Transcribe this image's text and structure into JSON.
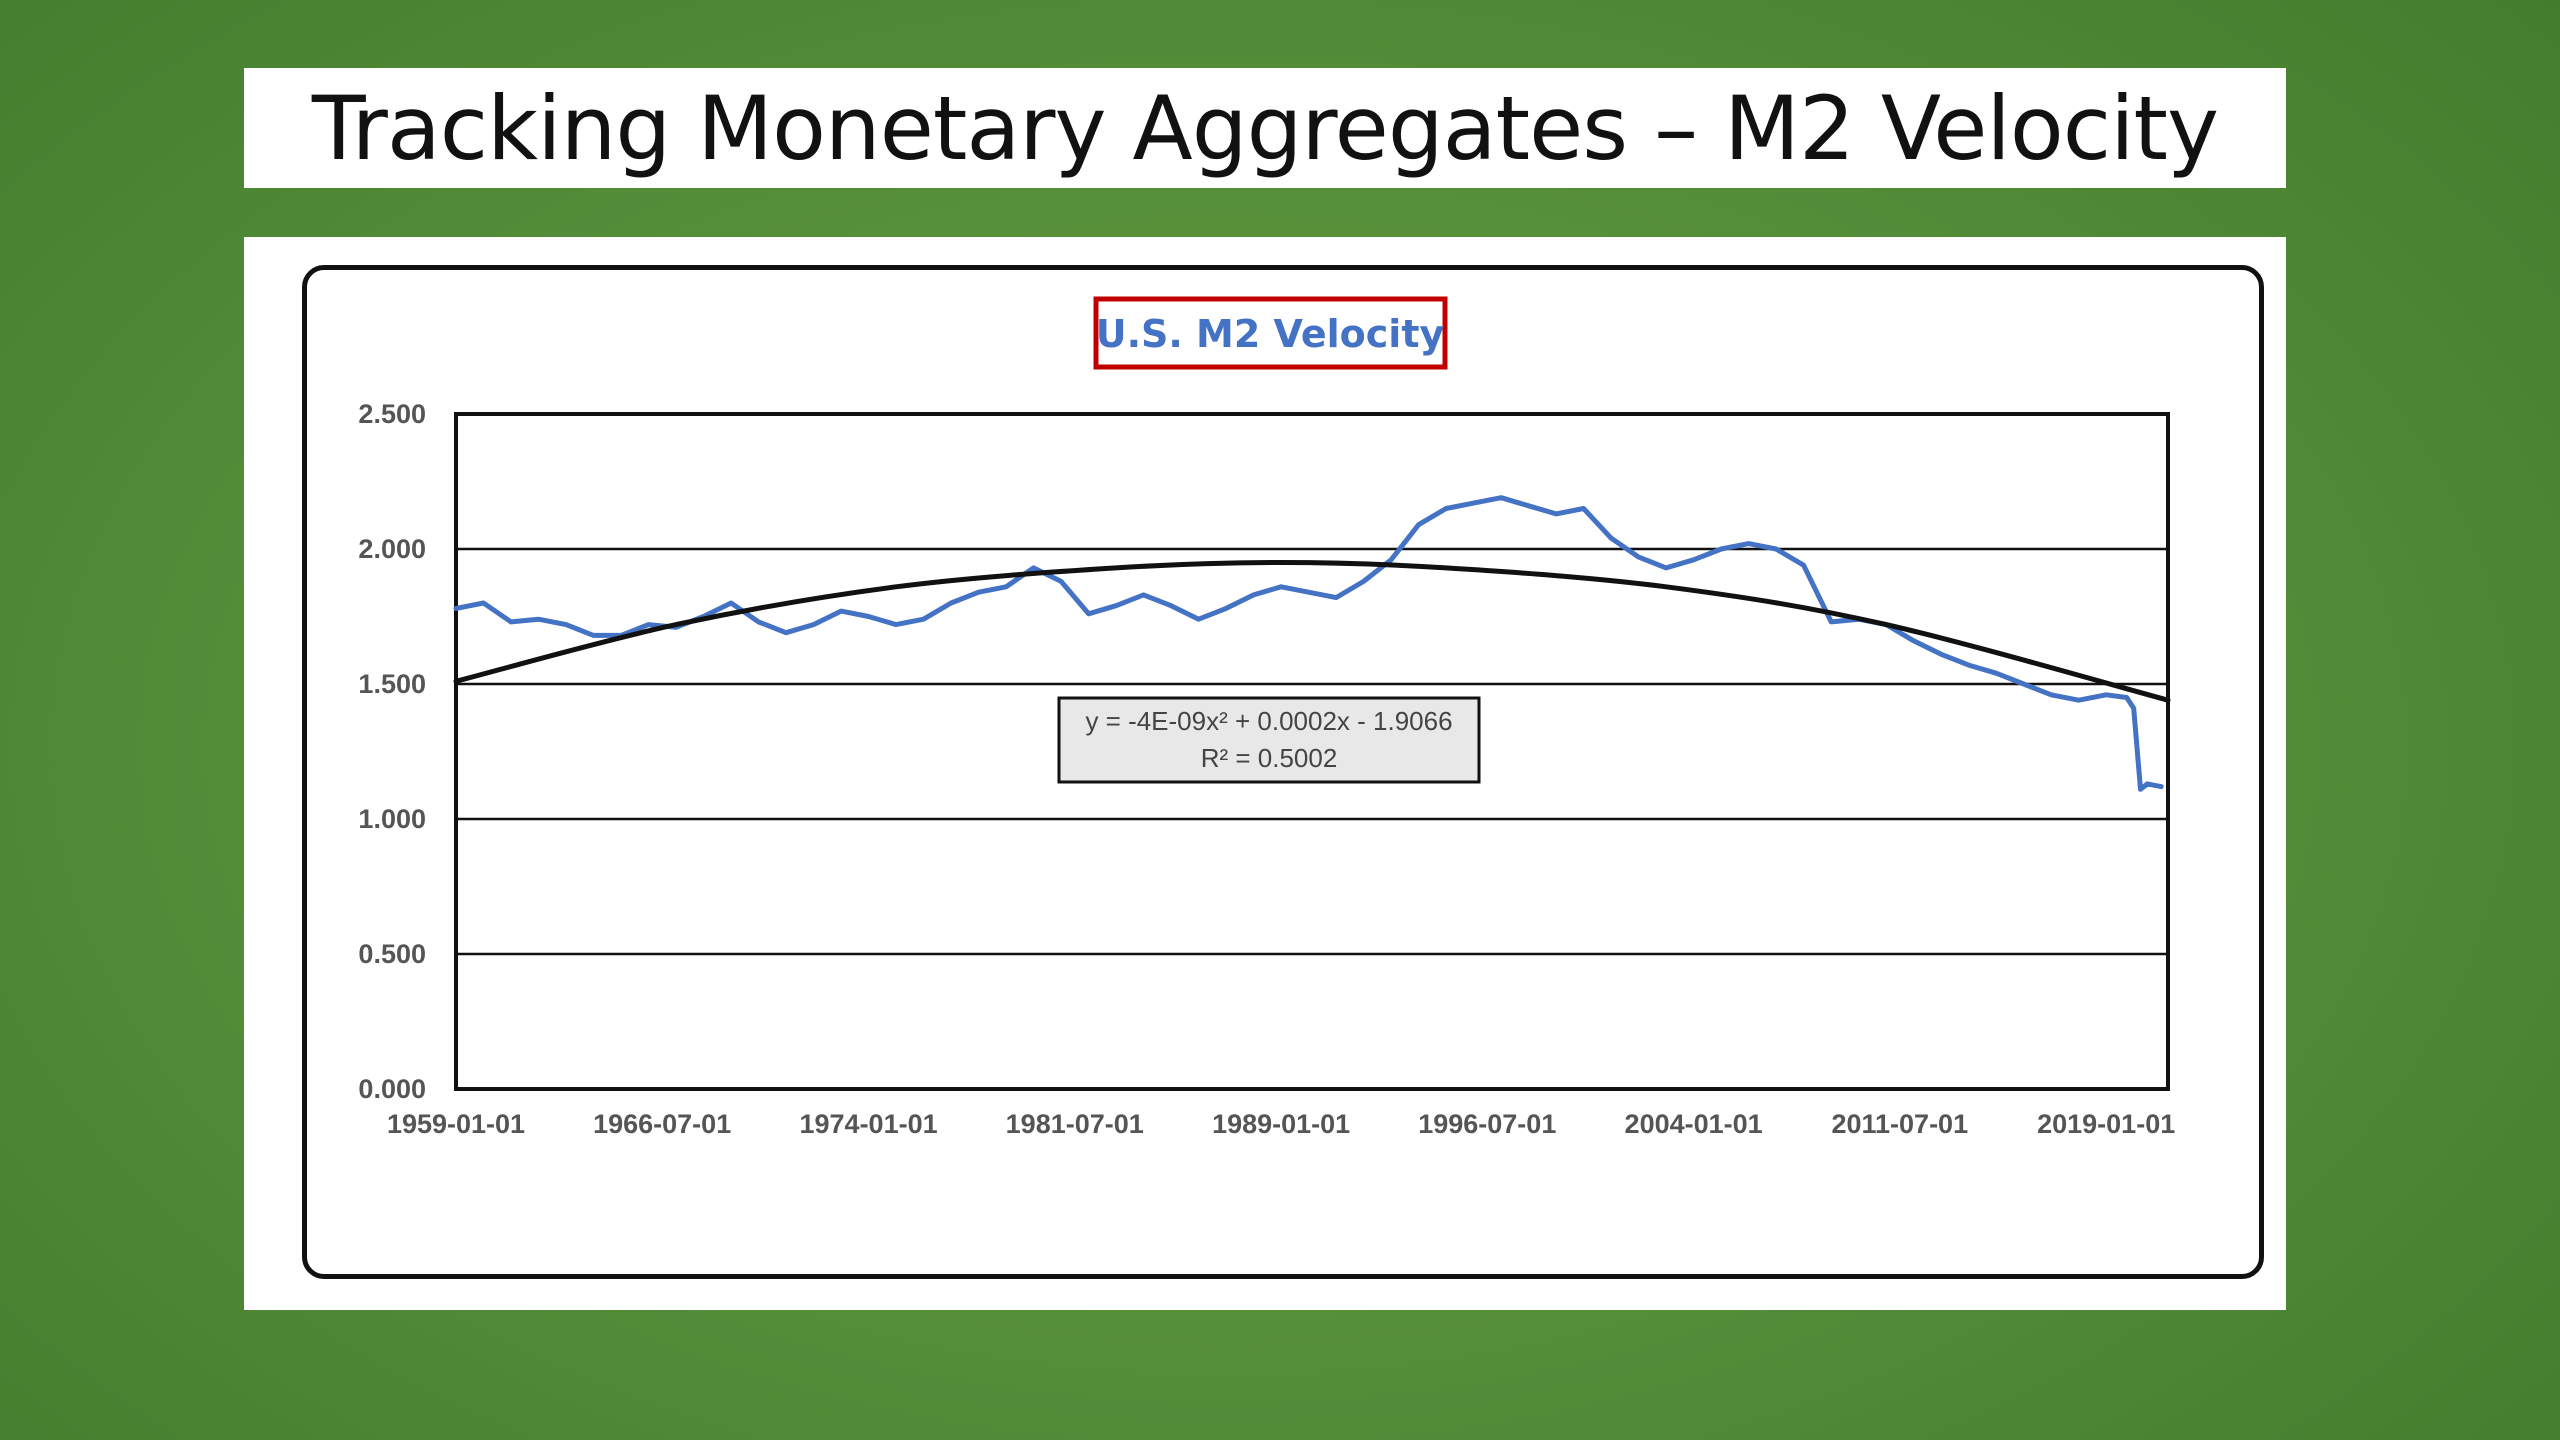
{
  "slide": {
    "title": "Tracking Monetary Aggregates – M2 Velocity"
  },
  "colors": {
    "background": "#5a9139",
    "series": "#4472c4",
    "trendline": "#111111",
    "title_border": "#c00000"
  },
  "chart_data": {
    "type": "line",
    "title": "U.S. M2 Velocity",
    "xlabel": "",
    "ylabel": "",
    "x_tick_labels": [
      "1959-01-01",
      "1966-07-01",
      "1974-01-01",
      "1981-07-01",
      "1989-01-01",
      "1996-07-01",
      "2004-01-01",
      "2011-07-01",
      "2019-01-01"
    ],
    "xlim": [
      "1959-01-01",
      "2021-04-01"
    ],
    "y_tick_labels": [
      "0.000",
      "0.500",
      "1.000",
      "1.500",
      "2.000",
      "2.500"
    ],
    "ylim": [
      0,
      2.5
    ],
    "grid": "horizontal",
    "legend": "none",
    "series": [
      {
        "x": [
          "1959-01-01",
          "1960-01-01",
          "1961-01-01",
          "1962-01-01",
          "1963-01-01",
          "1964-01-01",
          "1965-01-01",
          "1966-01-01",
          "1967-01-01",
          "1968-01-01",
          "1969-01-01",
          "1970-01-01",
          "1971-01-01",
          "1972-01-01",
          "1973-01-01",
          "1974-01-01",
          "1975-01-01",
          "1976-01-01",
          "1977-01-01",
          "1978-01-01",
          "1979-01-01",
          "1980-01-01",
          "1981-01-01",
          "1982-01-01",
          "1983-01-01",
          "1984-01-01",
          "1985-01-01",
          "1986-01-01",
          "1987-01-01",
          "1988-01-01",
          "1989-01-01",
          "1990-01-01",
          "1991-01-01",
          "1992-01-01",
          "1993-01-01",
          "1994-01-01",
          "1995-01-01",
          "1996-01-01",
          "1997-01-01",
          "1998-01-01",
          "1999-01-01",
          "2000-01-01",
          "2001-01-01",
          "2002-01-01",
          "2003-01-01",
          "2004-01-01",
          "2005-01-01",
          "2006-01-01",
          "2007-01-01",
          "2008-01-01",
          "2009-01-01",
          "2010-01-01",
          "2011-01-01",
          "2012-01-01",
          "2013-01-01",
          "2014-01-01",
          "2015-01-01",
          "2016-01-01",
          "2017-01-01",
          "2018-01-01",
          "2019-01-01",
          "2019-10-01",
          "2020-01-01",
          "2020-04-01",
          "2020-07-01",
          "2021-01-01"
        ],
        "values": [
          1.78,
          1.8,
          1.73,
          1.74,
          1.72,
          1.68,
          1.68,
          1.72,
          1.71,
          1.75,
          1.8,
          1.73,
          1.69,
          1.72,
          1.77,
          1.75,
          1.72,
          1.74,
          1.8,
          1.84,
          1.86,
          1.93,
          1.88,
          1.76,
          1.79,
          1.83,
          1.79,
          1.74,
          1.78,
          1.83,
          1.86,
          1.84,
          1.82,
          1.88,
          1.96,
          2.09,
          2.15,
          2.17,
          2.19,
          2.16,
          2.13,
          2.15,
          2.04,
          1.97,
          1.93,
          1.96,
          2.0,
          2.02,
          2.0,
          1.94,
          1.73,
          1.74,
          1.72,
          1.66,
          1.61,
          1.57,
          1.54,
          1.5,
          1.46,
          1.44,
          1.46,
          1.45,
          1.41,
          1.11,
          1.13,
          1.12
        ]
      }
    ],
    "trendline": {
      "type": "polynomial",
      "order": 2,
      "equation": "y = -4E-09x² + 0.0002x - 1.9066",
      "r_squared": "R² = 0.5002",
      "x": [
        "1959-01-01",
        "1967-01-01",
        "1975-01-01",
        "1983-01-01",
        "1989-01-01",
        "1995-01-01",
        "2003-01-01",
        "2011-01-01",
        "2021-04-01"
      ],
      "values": [
        1.51,
        1.72,
        1.86,
        1.93,
        1.95,
        1.93,
        1.86,
        1.72,
        1.44
      ]
    }
  }
}
